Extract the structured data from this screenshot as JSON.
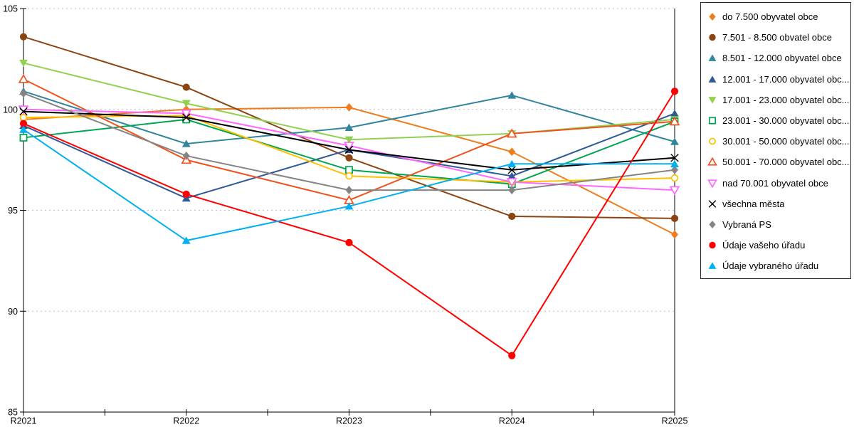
{
  "chart_data": {
    "type": "line",
    "x_categories": [
      "R2021",
      "R2022",
      "R2023",
      "R2024",
      "R2025"
    ],
    "y_tick_labels": [
      "105",
      "100",
      "95",
      "90",
      "85"
    ],
    "yticks": [
      105,
      100,
      95,
      90,
      85
    ],
    "ylim": [
      85,
      105
    ],
    "grid": "horizontal dashed gridlines at 90, 95, 100, 105",
    "legend_position": "right",
    "series": [
      {
        "name": "do 7.500 obyvatel obce",
        "color": "#EE7D1E",
        "marker": "diamond",
        "marker_style": "solid",
        "values": [
          99.5,
          100.0,
          100.1,
          97.9,
          93.8
        ]
      },
      {
        "name": "7.501 - 8.500 obvatel obce",
        "color": "#8B4513",
        "marker": "circle",
        "marker_style": "solid",
        "values": [
          103.6,
          101.1,
          97.6,
          94.7,
          94.6
        ]
      },
      {
        "name": "8.501 - 12.000 obyvatel obce",
        "color": "#31859C",
        "marker": "triangle-up",
        "marker_style": "solid",
        "values": [
          100.9,
          98.3,
          99.1,
          100.7,
          98.4
        ]
      },
      {
        "name": "12.001 - 17.000 obyvatel obc...",
        "color": "#2F5A96",
        "marker": "triangle-up",
        "marker_style": "solid",
        "values": [
          99.2,
          95.6,
          98.0,
          96.7,
          99.8
        ]
      },
      {
        "name": "17.001 - 23.000 obyvatel obc...",
        "color": "#92D050",
        "marker": "triangle-down",
        "marker_style": "solid",
        "values": [
          102.3,
          100.3,
          98.5,
          98.8,
          99.5
        ]
      },
      {
        "name": "23.001 - 30.000 obyvatel obc...",
        "color": "#00A550",
        "marker": "square",
        "marker_style": "open",
        "values": [
          98.6,
          99.5,
          97.0,
          96.3,
          99.4
        ]
      },
      {
        "name": "30.001 - 50.000 obyvatel obc...",
        "color": "#FFC000",
        "marker": "circle",
        "marker_style": "open",
        "values": [
          99.6,
          99.7,
          96.7,
          96.4,
          96.6
        ]
      },
      {
        "name": "50.001 - 70.000 obyvatel obc...",
        "color": "#F0521E",
        "marker": "triangle-up",
        "marker_style": "open",
        "values": [
          101.5,
          97.5,
          95.5,
          98.8,
          99.4
        ]
      },
      {
        "name": "nad 70.001 obyvatel obce",
        "color": "#FF66FF",
        "marker": "triangle-down",
        "marker_style": "open",
        "values": [
          100.0,
          99.8,
          98.2,
          96.4,
          96.0
        ]
      },
      {
        "name": "všechna města",
        "color": "#000000",
        "marker": "x",
        "marker_style": "line",
        "values": [
          99.9,
          99.6,
          98.0,
          97.0,
          97.6
        ]
      },
      {
        "name": "Vybraná PS",
        "color": "#848484",
        "marker": "diamond",
        "marker_style": "solid",
        "values": [
          100.8,
          97.7,
          96.0,
          96.0,
          97.0
        ]
      },
      {
        "name": "Údaje vašeho úřadu",
        "color": "#FE0000",
        "marker": "circle",
        "marker_style": "solid",
        "values": [
          99.3,
          95.8,
          93.4,
          87.8,
          100.9
        ]
      },
      {
        "name": "Údaje vybraného úřadu",
        "color": "#00B0F0",
        "marker": "triangle-up",
        "marker_style": "solid",
        "values": [
          99.0,
          93.5,
          95.2,
          97.3,
          97.3
        ]
      }
    ]
  },
  "colors": {
    "axis": "#000000",
    "gridline": "#bfbfbf",
    "background": "#ffffff",
    "legend_border": "#2b2b2b"
  }
}
